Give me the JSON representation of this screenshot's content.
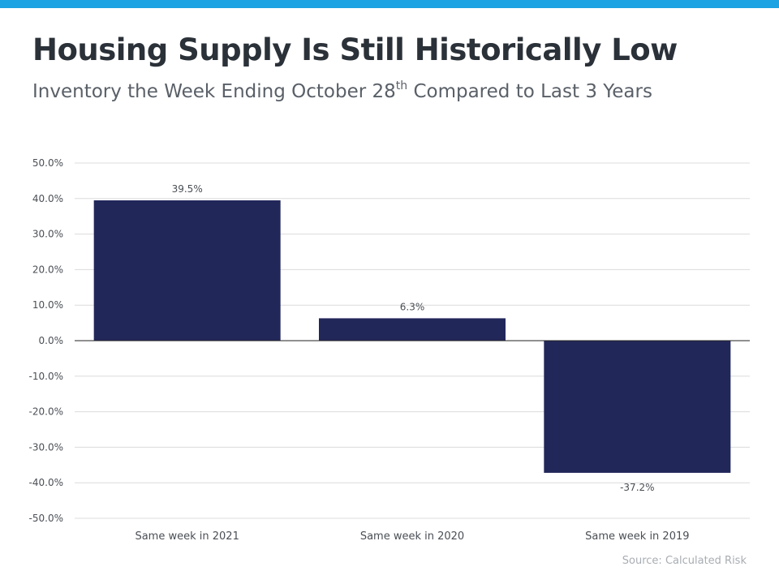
{
  "colors": {
    "accent_bar": "#1ba3e3",
    "bar_fill": "#22275a",
    "grid": "#dcdcdc",
    "text": "#4a4f55"
  },
  "header": {
    "title": "Housing Supply Is Still Historically Low",
    "subtitle_prefix": "Inventory the Week Ending October 28",
    "subtitle_sup": "th",
    "subtitle_suffix": " Compared to Last 3 Years"
  },
  "source": "Source: Calculated Risk",
  "chart_data": {
    "type": "bar",
    "categories": [
      "Same week in 2021",
      "Same week in 2020",
      "Same week in 2019"
    ],
    "values": [
      39.5,
      6.3,
      -37.2
    ],
    "value_labels": [
      "39.5%",
      "6.3%",
      "-37.2%"
    ],
    "yticks": [
      50,
      40,
      30,
      20,
      10,
      0,
      -10,
      -20,
      -30,
      -40,
      -50
    ],
    "ytick_labels": [
      "50.0%",
      "40.0%",
      "30.0%",
      "20.0%",
      "10.0%",
      "0.0%",
      "-10.0%",
      "-20.0%",
      "-30.0%",
      "-40.0%",
      "-50.0%"
    ],
    "ylim": [
      -50,
      50
    ],
    "grid": true,
    "xlabel": "",
    "ylabel": "",
    "title": "Housing Supply Is Still Historically Low"
  }
}
